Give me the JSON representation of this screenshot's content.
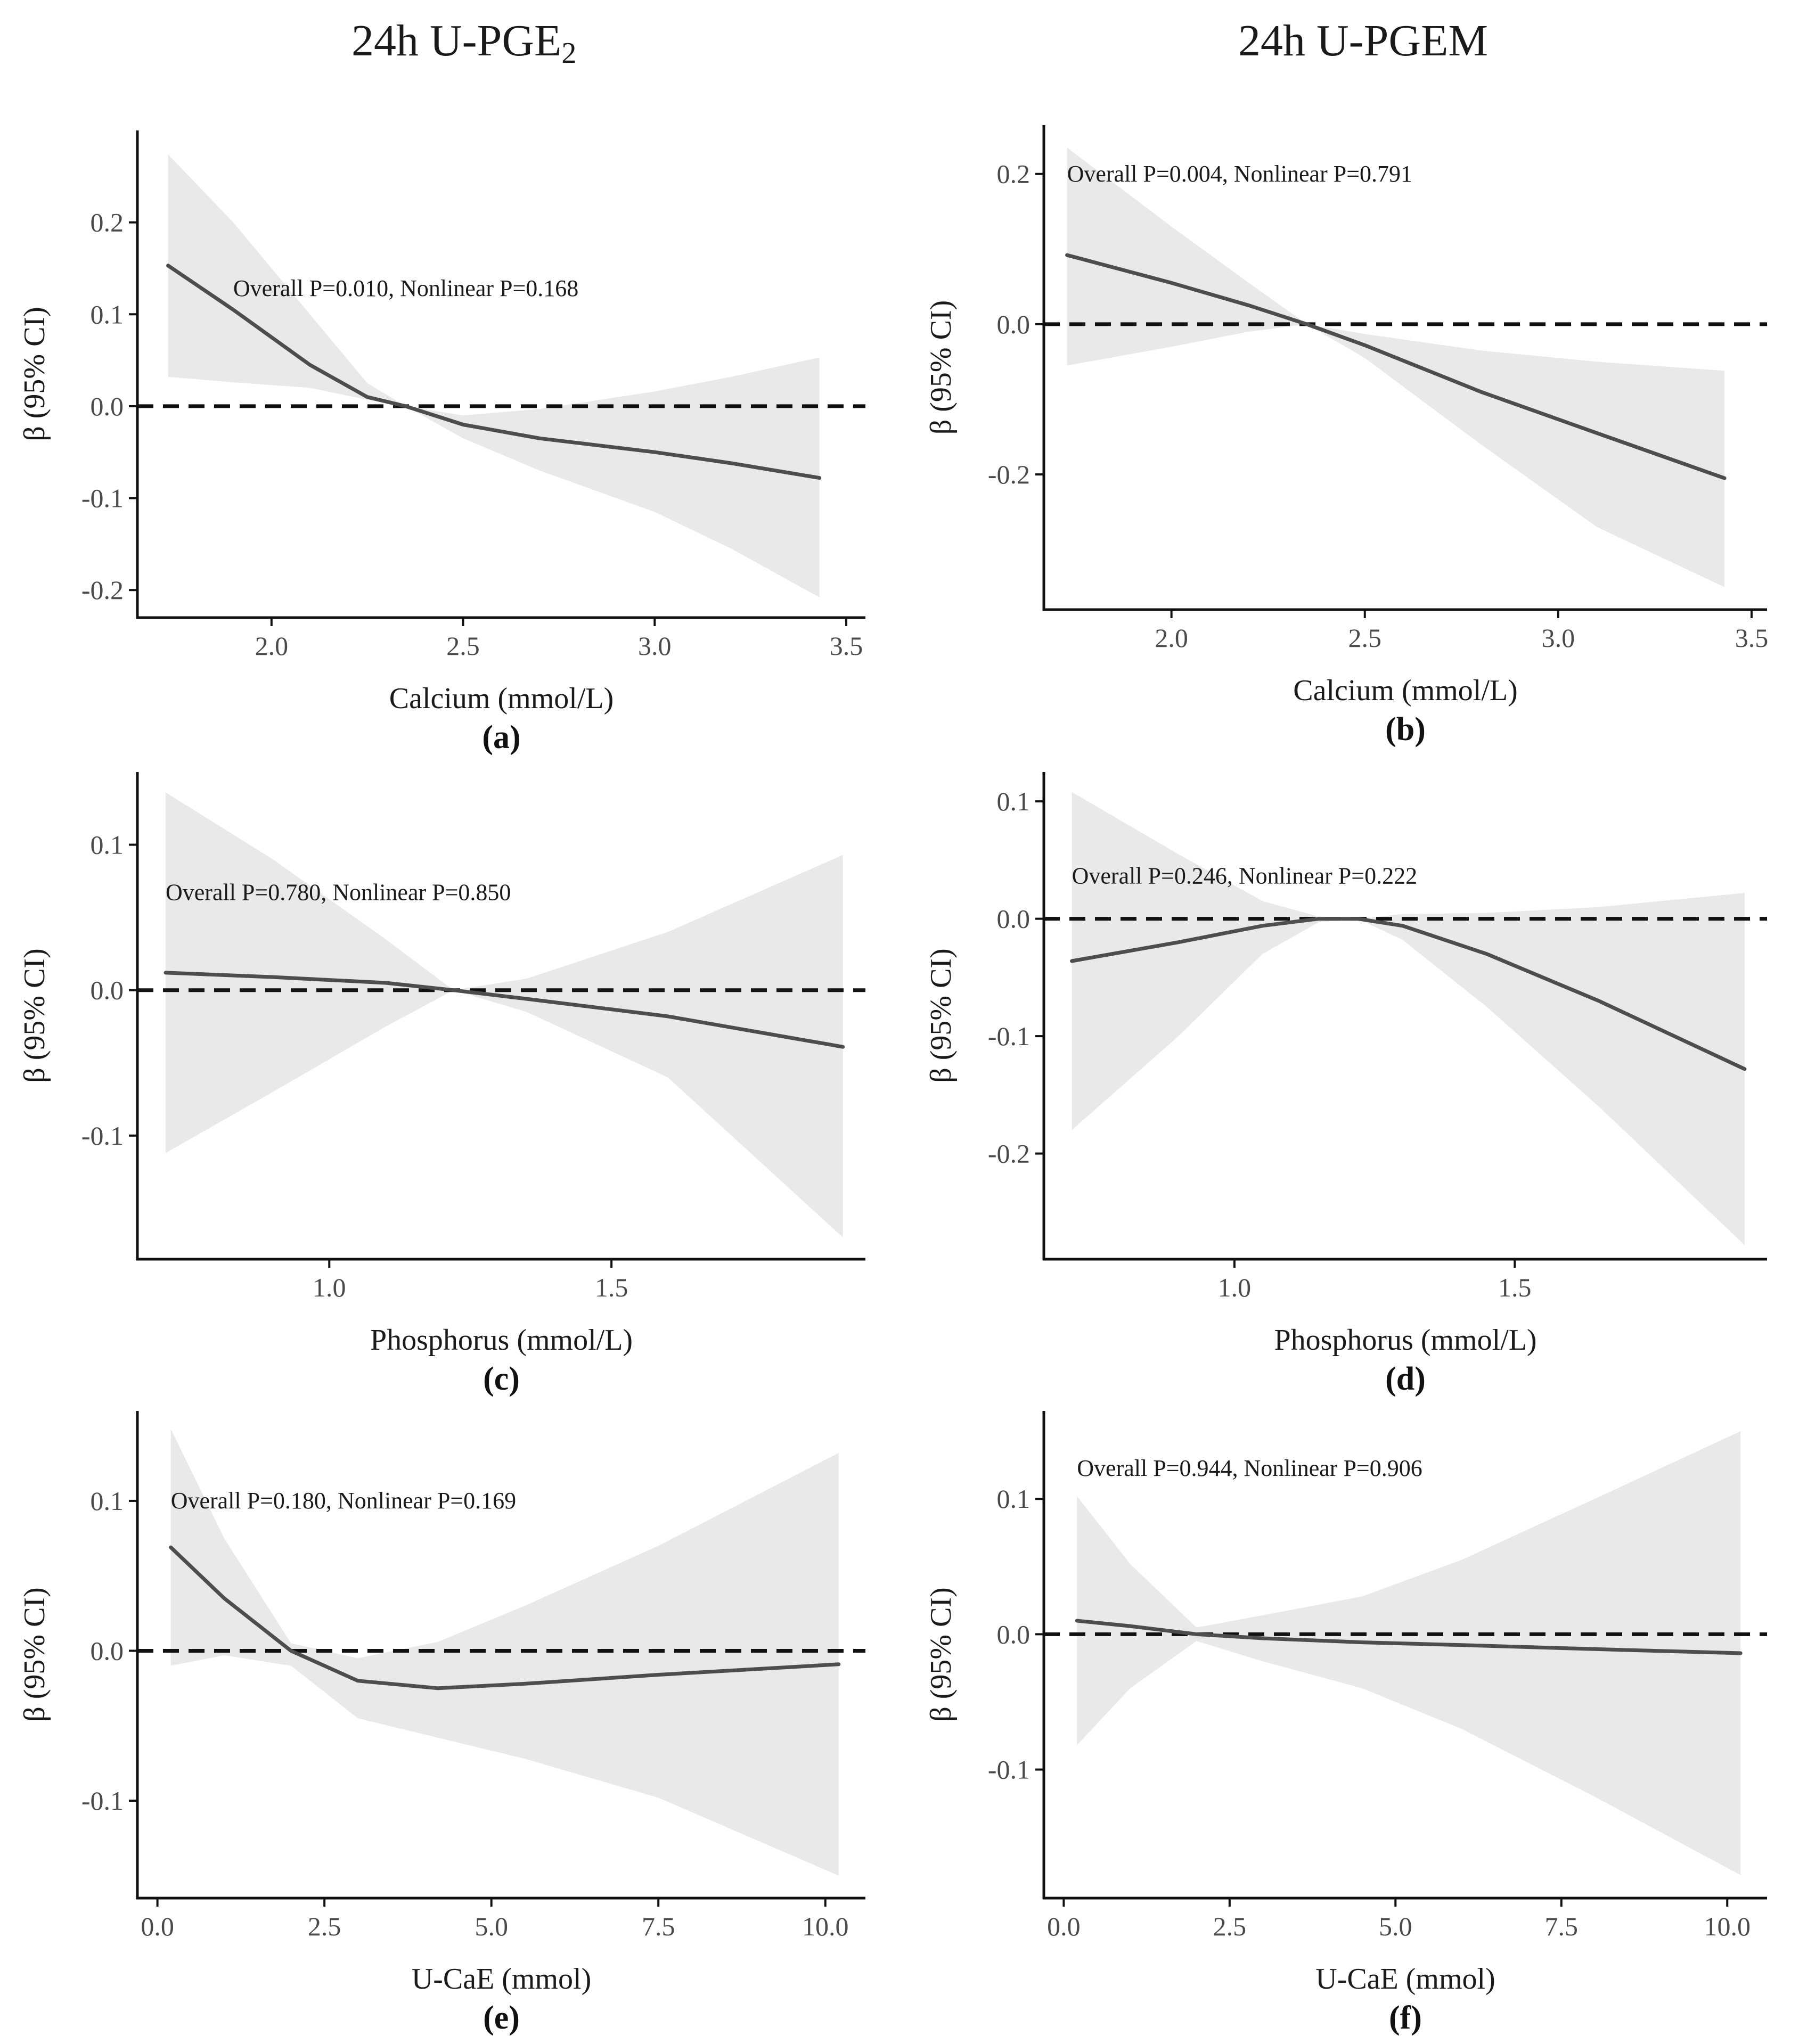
{
  "column_titles": [
    {
      "main": "24h U-PGE",
      "sub": "2"
    },
    {
      "main": "24h U-PGEM",
      "sub": ""
    }
  ],
  "colors": {
    "line": "#4d4d4d",
    "band": "#e9e9e9",
    "axis": "#111111",
    "reference": "#111111"
  },
  "chart_data": [
    {
      "type": "line",
      "panel": "(a)",
      "xlabel": "Calcium (mmol/L)",
      "ylabel": "β (95% CI)",
      "annotation": "Overall P=0.010, Nonlinear P=0.168",
      "xlim": [
        1.65,
        3.55
      ],
      "ylim": [
        -0.23,
        0.3
      ],
      "xticks": [
        2.0,
        2.5,
        3.0,
        3.5
      ],
      "xtick_labels": [
        "2.0",
        "2.5",
        "3.0",
        "3.5"
      ],
      "yticks": [
        0.2,
        0.1,
        0.0,
        -0.1,
        -0.2
      ],
      "ytick_labels": [
        "0.2",
        "0.1",
        "0.0",
        "-0.1",
        "-0.2"
      ],
      "reference_y": 0,
      "x": [
        1.73,
        1.9,
        2.1,
        2.25,
        2.35,
        2.5,
        2.7,
        3.0,
        3.2,
        3.43
      ],
      "y": [
        0.153,
        0.105,
        0.045,
        0.01,
        0.0,
        -0.02,
        -0.035,
        -0.05,
        -0.062,
        -0.078
      ],
      "lower": [
        0.032,
        0.026,
        0.02,
        0.007,
        0.0,
        -0.035,
        -0.07,
        -0.115,
        -0.155,
        -0.208
      ],
      "upper": [
        0.274,
        0.2,
        0.1,
        0.025,
        0.0,
        -0.01,
        -0.003,
        0.016,
        0.032,
        0.053
      ]
    },
    {
      "type": "line",
      "panel": "(b)",
      "xlabel": "Calcium (mmol/L)",
      "ylabel": "β (95% CI)",
      "annotation": "Overall P=0.004, Nonlinear P=0.791",
      "xlim": [
        1.67,
        3.54
      ],
      "ylim": [
        -0.38,
        0.265
      ],
      "xticks": [
        2.0,
        2.5,
        3.0,
        3.5
      ],
      "xtick_labels": [
        "2.0",
        "2.5",
        "3.0",
        "3.5"
      ],
      "yticks": [
        0.2,
        0.0,
        -0.2
      ],
      "ytick_labels": [
        "0.2",
        "0.0",
        "-0.2"
      ],
      "reference_y": 0,
      "x": [
        1.73,
        2.0,
        2.2,
        2.35,
        2.5,
        2.8,
        3.1,
        3.43
      ],
      "y": [
        0.092,
        0.055,
        0.025,
        0.0,
        -0.028,
        -0.09,
        -0.145,
        -0.205
      ],
      "lower": [
        -0.055,
        -0.03,
        -0.01,
        0.0,
        -0.045,
        -0.16,
        -0.27,
        -0.35
      ],
      "upper": [
        0.235,
        0.13,
        0.055,
        0.0,
        -0.013,
        -0.035,
        -0.05,
        -0.062
      ]
    },
    {
      "type": "line",
      "panel": "(c)",
      "xlabel": "Phosphorus (mmol/L)",
      "ylabel": "β (95% CI)",
      "annotation": "Overall P=0.780, Nonlinear P=0.850",
      "xlim": [
        0.66,
        1.95
      ],
      "ylim": [
        -0.185,
        0.15
      ],
      "xticks": [
        1.0,
        1.5
      ],
      "xtick_labels": [
        "1.0",
        "1.5"
      ],
      "yticks": [
        0.1,
        0.0,
        -0.1
      ],
      "ytick_labels": [
        "0.1",
        "0.0",
        "-0.1"
      ],
      "reference_y": 0,
      "x": [
        0.71,
        0.9,
        1.1,
        1.22,
        1.35,
        1.6,
        1.91
      ],
      "y": [
        0.012,
        0.009,
        0.005,
        0.0,
        -0.006,
        -0.018,
        -0.039
      ],
      "lower": [
        -0.112,
        -0.07,
        -0.025,
        0.0,
        -0.015,
        -0.06,
        -0.17
      ],
      "upper": [
        0.136,
        0.09,
        0.035,
        0.0,
        0.008,
        0.04,
        0.093
      ]
    },
    {
      "type": "line",
      "panel": "(d)",
      "xlabel": "Phosphorus (mmol/L)",
      "ylabel": "β (95% CI)",
      "annotation": "Overall P=0.246, Nonlinear P=0.222",
      "xlim": [
        0.66,
        1.95
      ],
      "ylim": [
        -0.29,
        0.125
      ],
      "xticks": [
        1.0,
        1.5
      ],
      "xtick_labels": [
        "1.0",
        "1.5"
      ],
      "yticks": [
        0.1,
        0.0,
        -0.1,
        -0.2
      ],
      "ytick_labels": [
        "0.1",
        "0.0",
        "-0.1",
        "-0.2"
      ],
      "reference_y": 0,
      "x": [
        0.71,
        0.9,
        1.05,
        1.15,
        1.22,
        1.3,
        1.45,
        1.65,
        1.91
      ],
      "y": [
        -0.036,
        -0.02,
        -0.006,
        0.0,
        0.0,
        -0.006,
        -0.03,
        -0.07,
        -0.128
      ],
      "lower": [
        -0.18,
        -0.1,
        -0.03,
        -0.003,
        0.0,
        -0.018,
        -0.075,
        -0.16,
        -0.278
      ],
      "upper": [
        0.108,
        0.055,
        0.015,
        0.002,
        0.0,
        0.004,
        0.005,
        0.01,
        0.022
      ]
    },
    {
      "type": "line",
      "panel": "(e)",
      "xlabel": "U-CaE (mmol)",
      "ylabel": "β (95% CI)",
      "annotation": "Overall P=0.180, Nonlinear P=0.169",
      "xlim": [
        -0.3,
        10.6
      ],
      "ylim": [
        -0.165,
        0.16
      ],
      "xticks": [
        0.0,
        2.5,
        5.0,
        7.5,
        10.0
      ],
      "xtick_labels": [
        "0.0",
        "2.5",
        "5.0",
        "7.5",
        "10.0"
      ],
      "yticks": [
        0.1,
        0.0,
        -0.1
      ],
      "ytick_labels": [
        "0.1",
        "0.0",
        "-0.1"
      ],
      "reference_y": 0,
      "x": [
        0.2,
        1.0,
        2.0,
        3.0,
        4.2,
        5.5,
        7.5,
        10.2
      ],
      "y": [
        0.069,
        0.035,
        0.0,
        -0.02,
        -0.025,
        -0.022,
        -0.016,
        -0.009
      ],
      "lower": [
        -0.01,
        -0.003,
        -0.01,
        -0.045,
        -0.058,
        -0.072,
        -0.098,
        -0.15
      ],
      "upper": [
        0.148,
        0.075,
        0.005,
        -0.005,
        0.006,
        0.03,
        0.07,
        0.132
      ]
    },
    {
      "type": "line",
      "panel": "(f)",
      "xlabel": "U-CaE (mmol)",
      "ylabel": "β (95% CI)",
      "annotation": "Overall P=0.944, Nonlinear P=0.906",
      "xlim": [
        -0.3,
        10.6
      ],
      "ylim": [
        -0.195,
        0.165
      ],
      "xticks": [
        0.0,
        2.5,
        5.0,
        7.5,
        10.0
      ],
      "xtick_labels": [
        "0.0",
        "2.5",
        "5.0",
        "7.5",
        "10.0"
      ],
      "yticks": [
        0.1,
        0.0,
        -0.1
      ],
      "ytick_labels": [
        "0.1",
        "0.0",
        "-0.1"
      ],
      "reference_y": 0,
      "x": [
        0.2,
        1.0,
        2.0,
        3.0,
        4.5,
        6.0,
        8.0,
        10.2
      ],
      "y": [
        0.01,
        0.006,
        0.0,
        -0.003,
        -0.006,
        -0.008,
        -0.011,
        -0.014
      ],
      "lower": [
        -0.082,
        -0.04,
        -0.005,
        -0.02,
        -0.04,
        -0.07,
        -0.12,
        -0.178
      ],
      "upper": [
        0.102,
        0.052,
        0.005,
        0.014,
        0.028,
        0.055,
        0.1,
        0.15
      ]
    }
  ]
}
